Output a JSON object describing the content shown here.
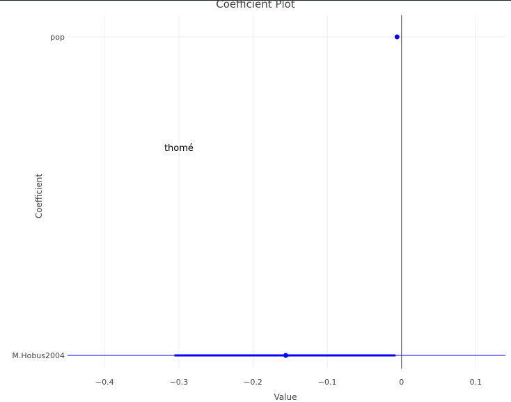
{
  "chart_data": {
    "type": "scatter",
    "title": "Coefficient Plot",
    "xlabel": "Value",
    "ylabel": "Coefficient",
    "xlim": [
      -0.45,
      0.14
    ],
    "xticks": [
      "−0.4",
      "−0.3",
      "−0.2",
      "−0.1",
      "0",
      "0.1"
    ],
    "xtick_values": [
      -0.4,
      -0.3,
      -0.2,
      -0.1,
      0,
      0.1
    ],
    "categories": [
      "pop",
      "M.Hobus2004"
    ],
    "points": [
      {
        "coefficient": "pop",
        "value": -0.006,
        "ci_low": -0.006,
        "ci_high": -0.006
      },
      {
        "coefficient": "M.Hobus2004",
        "value": -0.156,
        "ci_low": -0.306,
        "ci_high": -0.008
      }
    ],
    "reference_line_x": 0,
    "annotation": {
      "text": "thomé",
      "x": -0.3,
      "y_fraction": 0.35
    },
    "colors": {
      "point": "#0000ff",
      "zero_line": "#444444",
      "grid": "#eeeeee"
    },
    "grid": true
  }
}
